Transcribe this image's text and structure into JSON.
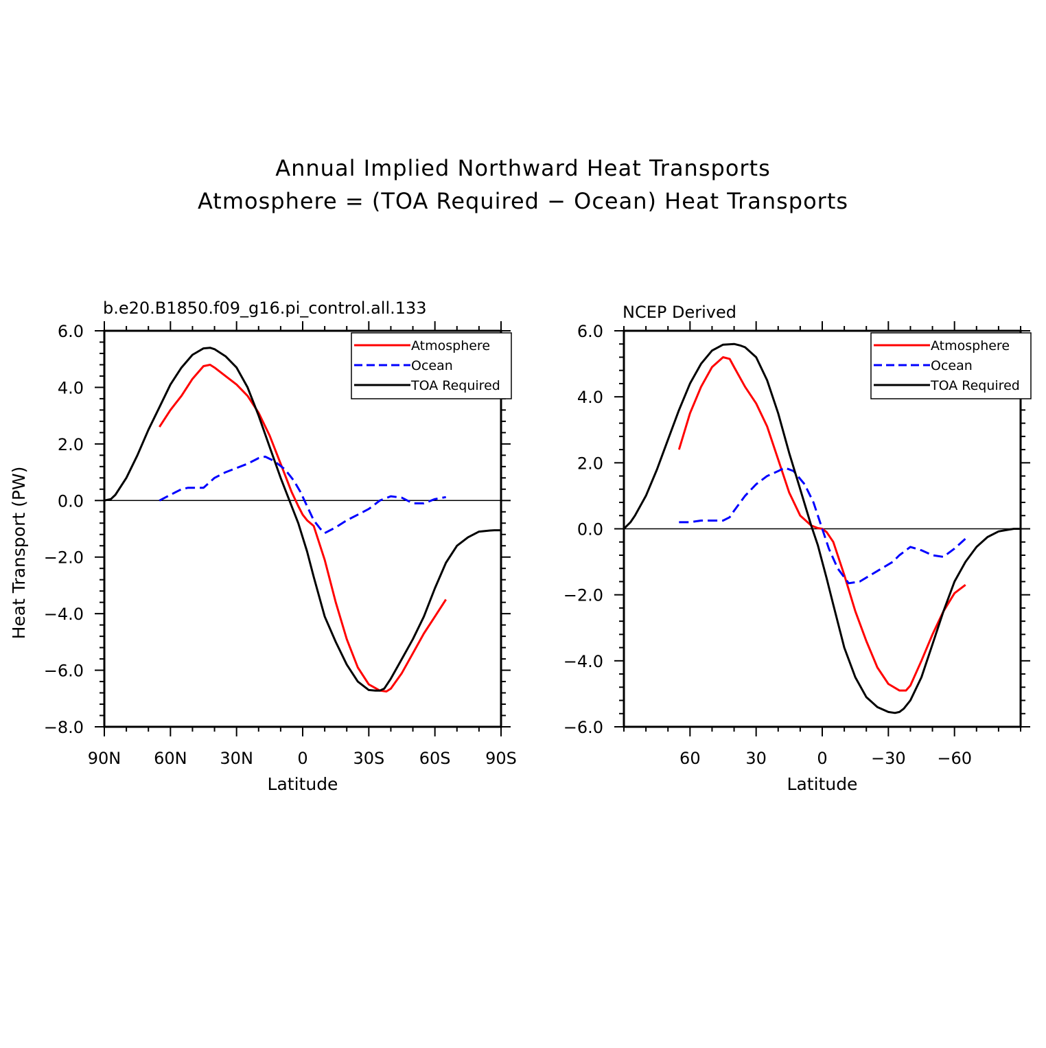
{
  "figure": {
    "title_line1": "Annual Implied Northward Heat Transports",
    "title_line2": "Atmosphere = (TOA Required − Ocean) Heat Transports"
  },
  "colors": {
    "atmosphere": "#ff0000",
    "ocean": "#0000ff",
    "toa": "#000000",
    "axis": "#000000"
  },
  "chart_data": [
    {
      "type": "line",
      "title": "b.e20.B1850.f09_g16.pi_control.all.133",
      "xlabel": "Latitude",
      "ylabel": "Heat Transport (PW)",
      "xlim": [
        90,
        -90
      ],
      "ylim": [
        -8,
        6
      ],
      "x_ticks": [
        90,
        60,
        30,
        0,
        -30,
        -60,
        -90
      ],
      "x_tick_labels": [
        "90N",
        "60N",
        "30N",
        "0",
        "30S",
        "60S",
        "90S"
      ],
      "y_ticks": [
        6,
        4,
        2,
        0,
        -2,
        -4,
        -6,
        -8
      ],
      "y_tick_labels": [
        "6.0",
        "4.0",
        "2.0",
        "0.0",
        "−2.0",
        "−4.0",
        "−6.0",
        "−8.0"
      ],
      "reference_line_y": 0,
      "legend": [
        "Atmosphere",
        "Ocean",
        "TOA Required"
      ],
      "legend_position": "top-right",
      "series": [
        {
          "name": "Atmosphere",
          "color_key": "atmosphere",
          "dash": "solid",
          "x": [
            65,
            60,
            55,
            50,
            45,
            42,
            40,
            35,
            30,
            25,
            20,
            15,
            10,
            5,
            2,
            0,
            -2,
            -5,
            -10,
            -15,
            -20,
            -25,
            -30,
            -35,
            -38,
            -40,
            -45,
            -50,
            -55,
            -60,
            -65
          ],
          "y": [
            2.6,
            3.2,
            3.7,
            4.3,
            4.75,
            4.8,
            4.7,
            4.4,
            4.1,
            3.7,
            3.1,
            2.3,
            1.3,
            0.3,
            -0.2,
            -0.5,
            -0.7,
            -0.9,
            -2.1,
            -3.6,
            -4.9,
            -5.9,
            -6.5,
            -6.72,
            -6.75,
            -6.65,
            -6.1,
            -5.4,
            -4.7,
            -4.1,
            -3.5
          ]
        },
        {
          "name": "Ocean",
          "color_key": "ocean",
          "dash": "dashed",
          "x": [
            65,
            60,
            55,
            52,
            48,
            45,
            40,
            35,
            30,
            25,
            20,
            17,
            13,
            8,
            4,
            1,
            -2,
            -5,
            -8,
            -10,
            -15,
            -20,
            -25,
            -30,
            -35,
            -40,
            -45,
            -50,
            -55,
            -60,
            -65
          ],
          "y": [
            0.0,
            0.2,
            0.4,
            0.45,
            0.45,
            0.45,
            0.8,
            1.0,
            1.15,
            1.3,
            1.5,
            1.55,
            1.4,
            1.1,
            0.7,
            0.3,
            -0.2,
            -0.7,
            -1.0,
            -1.15,
            -0.95,
            -0.7,
            -0.5,
            -0.3,
            0.0,
            0.15,
            0.1,
            -0.1,
            -0.1,
            0.05,
            0.12
          ]
        },
        {
          "name": "TOA Required",
          "color_key": "toa",
          "dash": "solid",
          "x": [
            90,
            87,
            85,
            80,
            75,
            70,
            65,
            60,
            55,
            50,
            45,
            42,
            40,
            35,
            30,
            25,
            20,
            15,
            10,
            5,
            2,
            0,
            -2,
            -5,
            -10,
            -15,
            -20,
            -25,
            -30,
            -33,
            -35,
            -37,
            -40,
            -45,
            -50,
            -55,
            -60,
            -65,
            -70,
            -75,
            -80,
            -85,
            -87,
            -90
          ],
          "y": [
            0.0,
            0.05,
            0.2,
            0.8,
            1.6,
            2.5,
            3.3,
            4.1,
            4.7,
            5.15,
            5.38,
            5.4,
            5.35,
            5.1,
            4.7,
            4.0,
            3.0,
            1.9,
            0.8,
            -0.2,
            -0.8,
            -1.3,
            -1.8,
            -2.7,
            -4.1,
            -5.0,
            -5.8,
            -6.4,
            -6.7,
            -6.72,
            -6.72,
            -6.65,
            -6.3,
            -5.6,
            -4.9,
            -4.1,
            -3.1,
            -2.2,
            -1.6,
            -1.3,
            -1.1,
            -1.06,
            -1.05,
            -1.05
          ]
        }
      ]
    },
    {
      "type": "line",
      "title": "NCEP Derived",
      "xlabel": "Latitude",
      "ylabel": "",
      "xlim": [
        90,
        -90
      ],
      "ylim": [
        -6,
        6
      ],
      "x_ticks": [
        60,
        30,
        0,
        -30,
        -60
      ],
      "x_tick_labels": [
        "60",
        "30",
        "0",
        "−30",
        "−60"
      ],
      "y_ticks": [
        6,
        4,
        2,
        0,
        -2,
        -4,
        -6
      ],
      "y_tick_labels": [
        "6.0",
        "4.0",
        "2.0",
        "0.0",
        "−2.0",
        "−4.0",
        "−6.0"
      ],
      "reference_line_y": 0,
      "legend": [
        "Atmosphere",
        "Ocean",
        "TOA Required"
      ],
      "legend_position": "top-right",
      "series": [
        {
          "name": "Atmosphere",
          "color_key": "atmosphere",
          "dash": "solid",
          "x": [
            65,
            60,
            55,
            50,
            45,
            42,
            40,
            35,
            30,
            25,
            20,
            15,
            10,
            5,
            2,
            0,
            -2,
            -5,
            -10,
            -15,
            -20,
            -25,
            -30,
            -35,
            -38,
            -40,
            -45,
            -50,
            -55,
            -60,
            -65
          ],
          "y": [
            2.4,
            3.5,
            4.3,
            4.9,
            5.2,
            5.15,
            4.9,
            4.3,
            3.8,
            3.1,
            2.1,
            1.1,
            0.4,
            0.1,
            0.02,
            0.0,
            -0.1,
            -0.4,
            -1.4,
            -2.5,
            -3.4,
            -4.2,
            -4.7,
            -4.9,
            -4.9,
            -4.75,
            -4.0,
            -3.2,
            -2.5,
            -1.95,
            -1.7
          ]
        },
        {
          "name": "Ocean",
          "color_key": "ocean",
          "dash": "dashed",
          "x": [
            65,
            60,
            55,
            50,
            45,
            42,
            40,
            35,
            30,
            25,
            20,
            17,
            13,
            8,
            4,
            0,
            -3,
            -7,
            -12,
            -17,
            -22,
            -27,
            -32,
            -35,
            -40,
            -45,
            -50,
            -55,
            -60,
            -65
          ],
          "y": [
            0.2,
            0.2,
            0.25,
            0.25,
            0.25,
            0.35,
            0.55,
            1.0,
            1.35,
            1.6,
            1.75,
            1.85,
            1.75,
            1.35,
            0.8,
            0.0,
            -0.6,
            -1.2,
            -1.65,
            -1.6,
            -1.4,
            -1.2,
            -1.0,
            -0.8,
            -0.55,
            -0.65,
            -0.8,
            -0.85,
            -0.6,
            -0.3
          ]
        },
        {
          "name": "TOA Required",
          "color_key": "toa",
          "dash": "solid",
          "x": [
            90,
            87,
            85,
            80,
            75,
            70,
            65,
            60,
            55,
            50,
            45,
            40,
            37,
            35,
            30,
            25,
            20,
            15,
            10,
            5,
            2,
            0,
            -2,
            -5,
            -10,
            -15,
            -20,
            -25,
            -30,
            -33,
            -35,
            -37,
            -40,
            -45,
            -50,
            -55,
            -60,
            -65,
            -70,
            -75,
            -80,
            -85,
            -87,
            -90
          ],
          "y": [
            0.0,
            0.2,
            0.4,
            1.0,
            1.8,
            2.7,
            3.6,
            4.4,
            5.0,
            5.4,
            5.58,
            5.6,
            5.55,
            5.5,
            5.2,
            4.5,
            3.5,
            2.3,
            1.2,
            0.1,
            -0.5,
            -1.0,
            -1.5,
            -2.3,
            -3.6,
            -4.5,
            -5.1,
            -5.4,
            -5.55,
            -5.58,
            -5.55,
            -5.45,
            -5.2,
            -4.5,
            -3.5,
            -2.5,
            -1.6,
            -1.0,
            -0.55,
            -0.25,
            -0.08,
            -0.02,
            0.0,
            0.0
          ]
        }
      ]
    }
  ]
}
